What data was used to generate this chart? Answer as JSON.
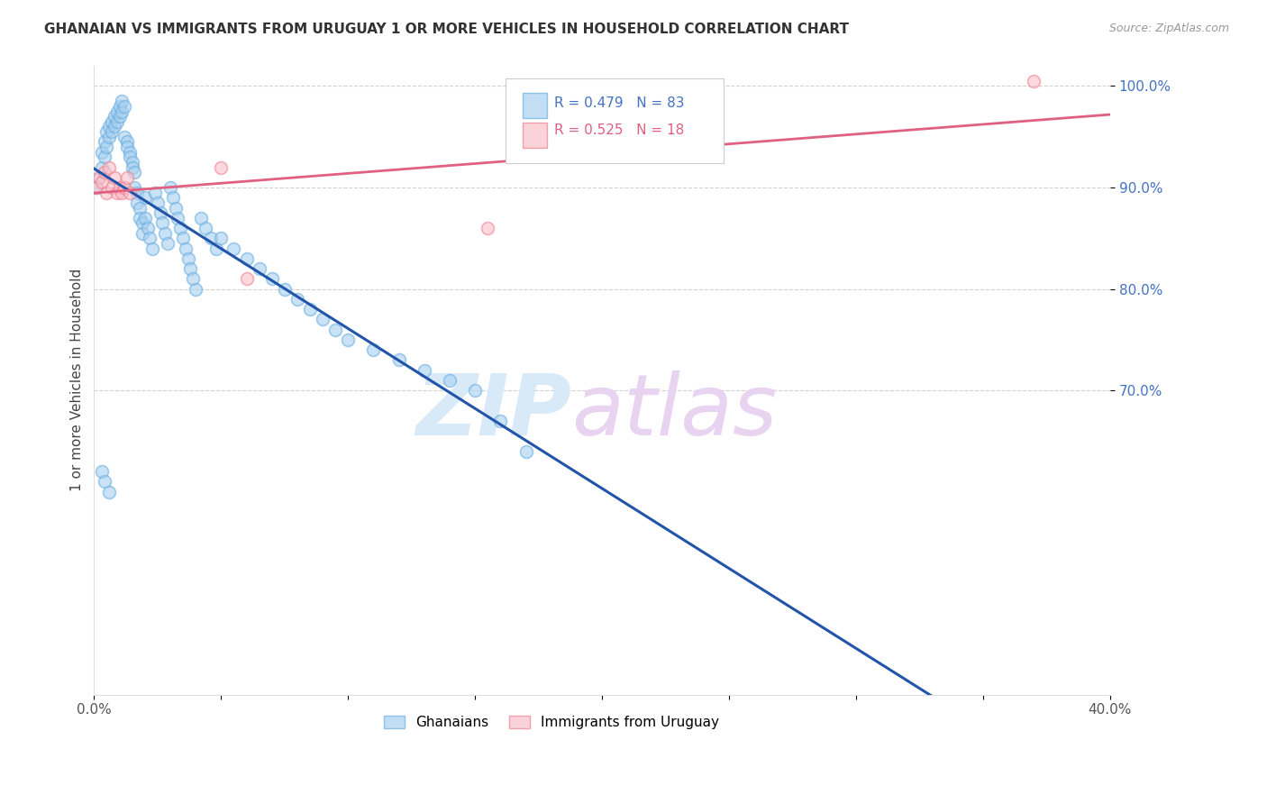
{
  "title": "GHANAIAN VS IMMIGRANTS FROM URUGUAY 1 OR MORE VEHICLES IN HOUSEHOLD CORRELATION CHART",
  "source": "Source: ZipAtlas.com",
  "ylabel": "1 or more Vehicles in Household",
  "xlim": [
    0.0,
    0.4
  ],
  "ylim": [
    0.4,
    1.02
  ],
  "ytick_positions": [
    0.7,
    0.8,
    0.9,
    1.0
  ],
  "ytick_labels": [
    "70.0%",
    "80.0%",
    "90.0%",
    "100.0%"
  ],
  "legend_blue_text": "R = 0.479   N = 83",
  "legend_pink_text": "R = 0.525   N = 18",
  "legend_label_blue": "Ghanaians",
  "legend_label_pink": "Immigrants from Uruguay",
  "blue_face_color": "#a8d0f0",
  "blue_edge_color": "#6aaee0",
  "pink_face_color": "#f9c0cb",
  "pink_edge_color": "#f08090",
  "blue_line_color": "#2255aa",
  "pink_line_color": "#e06080",
  "legend_text_blue": "#4472c4",
  "legend_text_pink": "#e06080",
  "ytick_color": "#4472c4",
  "watermark_zip": "ZIP",
  "watermark_atlas": "atlas",
  "watermark_color": "#d8eaf8",
  "blue_x": [
    0.001,
    0.002,
    0.003,
    0.003,
    0.004,
    0.004,
    0.005,
    0.005,
    0.006,
    0.006,
    0.007,
    0.007,
    0.008,
    0.008,
    0.009,
    0.009,
    0.01,
    0.01,
    0.011,
    0.011,
    0.012,
    0.012,
    0.013,
    0.013,
    0.014,
    0.014,
    0.015,
    0.015,
    0.016,
    0.016,
    0.017,
    0.017,
    0.018,
    0.018,
    0.019,
    0.019,
    0.02,
    0.02,
    0.021,
    0.022,
    0.023,
    0.024,
    0.025,
    0.026,
    0.027,
    0.028,
    0.029,
    0.03,
    0.031,
    0.032,
    0.033,
    0.034,
    0.035,
    0.036,
    0.037,
    0.038,
    0.039,
    0.04,
    0.042,
    0.044,
    0.046,
    0.048,
    0.05,
    0.055,
    0.06,
    0.065,
    0.07,
    0.075,
    0.08,
    0.085,
    0.09,
    0.095,
    0.1,
    0.11,
    0.12,
    0.13,
    0.14,
    0.15,
    0.16,
    0.17,
    0.003,
    0.004,
    0.006
  ],
  "blue_y": [
    0.9,
    0.91,
    0.92,
    0.935,
    0.93,
    0.945,
    0.94,
    0.955,
    0.95,
    0.96,
    0.955,
    0.965,
    0.96,
    0.97,
    0.965,
    0.975,
    0.97,
    0.98,
    0.975,
    0.985,
    0.98,
    0.95,
    0.945,
    0.94,
    0.935,
    0.93,
    0.925,
    0.92,
    0.915,
    0.9,
    0.895,
    0.885,
    0.88,
    0.87,
    0.865,
    0.855,
    0.89,
    0.87,
    0.86,
    0.85,
    0.84,
    0.895,
    0.885,
    0.875,
    0.865,
    0.855,
    0.845,
    0.9,
    0.89,
    0.88,
    0.87,
    0.86,
    0.85,
    0.84,
    0.83,
    0.82,
    0.81,
    0.8,
    0.87,
    0.86,
    0.85,
    0.84,
    0.85,
    0.84,
    0.83,
    0.82,
    0.81,
    0.8,
    0.79,
    0.78,
    0.77,
    0.76,
    0.75,
    0.74,
    0.73,
    0.72,
    0.71,
    0.7,
    0.67,
    0.64,
    0.62,
    0.61,
    0.6
  ],
  "pink_x": [
    0.001,
    0.002,
    0.003,
    0.004,
    0.005,
    0.006,
    0.007,
    0.008,
    0.009,
    0.01,
    0.011,
    0.012,
    0.013,
    0.014,
    0.05,
    0.06,
    0.155,
    0.37
  ],
  "pink_y": [
    0.9,
    0.91,
    0.905,
    0.915,
    0.895,
    0.92,
    0.9,
    0.91,
    0.895,
    0.9,
    0.895,
    0.9,
    0.91,
    0.895,
    0.92,
    0.81,
    0.86,
    1.005
  ]
}
